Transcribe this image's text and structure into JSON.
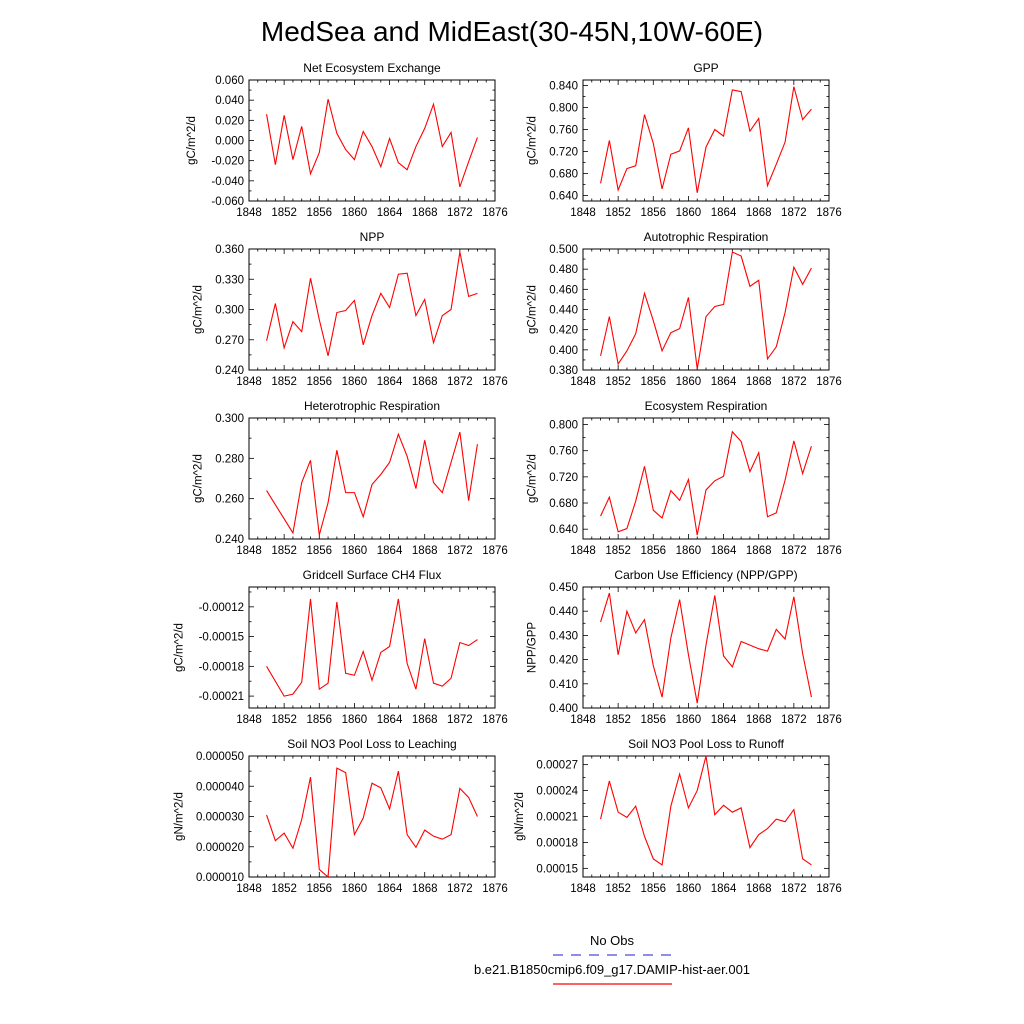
{
  "title": "MedSea and MidEast(30-45N,10W-60E)",
  "line_color": "#ff0000",
  "obs_color": "#4a4ad8",
  "legend": {
    "obs_label": "No Obs",
    "model_label": "b.e21.B1850cmip6.f09_g17.DAMIP-hist-aer.001"
  },
  "chart_data": [
    {
      "type": "line",
      "title": "Net Ecosystem Exchange",
      "ylabel": "gC/m^2/d",
      "xlim": [
        1848,
        1876
      ],
      "ylim": [
        -0.06,
        0.06
      ],
      "xticks": [
        "1848",
        "1852",
        "1856",
        "1860",
        "1864",
        "1868",
        "1872",
        "1876"
      ],
      "yticks": [
        {
          "v": -0.06,
          "l": "-0.060"
        },
        {
          "v": -0.04,
          "l": "-0.040"
        },
        {
          "v": -0.02,
          "l": "-0.020"
        },
        {
          "v": 0.0,
          "l": "0.000"
        },
        {
          "v": 0.02,
          "l": "0.020"
        },
        {
          "v": 0.04,
          "l": "0.040"
        },
        {
          "v": 0.06,
          "l": "0.060"
        }
      ],
      "x": [
        1850,
        1851,
        1852,
        1853,
        1854,
        1855,
        1856,
        1857,
        1858,
        1859,
        1860,
        1861,
        1862,
        1863,
        1864,
        1865,
        1866,
        1867,
        1868,
        1869,
        1870,
        1871,
        1872,
        1873,
        1874
      ],
      "y": [
        0.026,
        -0.024,
        0.025,
        -0.019,
        0.014,
        -0.033,
        -0.012,
        0.041,
        0.007,
        -0.009,
        -0.019,
        0.009,
        -0.006,
        -0.026,
        0.002,
        -0.022,
        -0.029,
        -0.006,
        0.012,
        0.036,
        -0.006,
        0.008,
        -0.046,
        -0.021,
        0.003
      ]
    },
    {
      "type": "line",
      "title": "GPP",
      "ylabel": "gC/m^2/d",
      "xlim": [
        1848,
        1876
      ],
      "ylim": [
        0.63,
        0.85
      ],
      "xticks": [
        "1848",
        "1852",
        "1856",
        "1860",
        "1864",
        "1868",
        "1872",
        "1876"
      ],
      "yticks": [
        {
          "v": 0.64,
          "l": "0.640"
        },
        {
          "v": 0.68,
          "l": "0.680"
        },
        {
          "v": 0.72,
          "l": "0.720"
        },
        {
          "v": 0.76,
          "l": "0.760"
        },
        {
          "v": 0.8,
          "l": "0.800"
        },
        {
          "v": 0.84,
          "l": "0.840"
        }
      ],
      "x": [
        1850,
        1851,
        1852,
        1853,
        1854,
        1855,
        1856,
        1857,
        1858,
        1859,
        1860,
        1861,
        1862,
        1863,
        1864,
        1865,
        1866,
        1867,
        1868,
        1869,
        1870,
        1871,
        1872,
        1873,
        1874
      ],
      "y": [
        0.662,
        0.74,
        0.65,
        0.689,
        0.694,
        0.787,
        0.735,
        0.652,
        0.715,
        0.721,
        0.763,
        0.645,
        0.728,
        0.76,
        0.748,
        0.832,
        0.829,
        0.757,
        0.78,
        0.658,
        0.697,
        0.737,
        0.838,
        0.778,
        0.797
      ]
    },
    {
      "type": "line",
      "title": "NPP",
      "ylabel": "gC/m^2/d",
      "xlim": [
        1848,
        1876
      ],
      "ylim": [
        0.24,
        0.36
      ],
      "xticks": [
        "1848",
        "1852",
        "1856",
        "1860",
        "1864",
        "1868",
        "1872",
        "1876"
      ],
      "yticks": [
        {
          "v": 0.24,
          "l": "0.240"
        },
        {
          "v": 0.27,
          "l": "0.270"
        },
        {
          "v": 0.3,
          "l": "0.300"
        },
        {
          "v": 0.33,
          "l": "0.330"
        },
        {
          "v": 0.36,
          "l": "0.360"
        }
      ],
      "x": [
        1850,
        1851,
        1852,
        1853,
        1854,
        1855,
        1856,
        1857,
        1858,
        1859,
        1860,
        1861,
        1862,
        1863,
        1864,
        1865,
        1866,
        1867,
        1868,
        1869,
        1870,
        1871,
        1872,
        1873,
        1874
      ],
      "y": [
        0.269,
        0.306,
        0.262,
        0.288,
        0.278,
        0.331,
        0.29,
        0.254,
        0.297,
        0.299,
        0.309,
        0.265,
        0.294,
        0.316,
        0.302,
        0.335,
        0.336,
        0.294,
        0.31,
        0.267,
        0.294,
        0.3,
        0.357,
        0.313,
        0.316
      ]
    },
    {
      "type": "line",
      "title": "Autotrophic Respiration",
      "ylabel": "gC/m^2/d",
      "xlim": [
        1848,
        1876
      ],
      "ylim": [
        0.38,
        0.5
      ],
      "xticks": [
        "1848",
        "1852",
        "1856",
        "1860",
        "1864",
        "1868",
        "1872",
        "1876"
      ],
      "yticks": [
        {
          "v": 0.38,
          "l": "0.380"
        },
        {
          "v": 0.4,
          "l": "0.400"
        },
        {
          "v": 0.42,
          "l": "0.420"
        },
        {
          "v": 0.44,
          "l": "0.440"
        },
        {
          "v": 0.46,
          "l": "0.460"
        },
        {
          "v": 0.48,
          "l": "0.480"
        },
        {
          "v": 0.5,
          "l": "0.500"
        }
      ],
      "x": [
        1850,
        1851,
        1852,
        1853,
        1854,
        1855,
        1856,
        1857,
        1858,
        1859,
        1860,
        1861,
        1862,
        1863,
        1864,
        1865,
        1866,
        1867,
        1868,
        1869,
        1870,
        1871,
        1872,
        1873,
        1874
      ],
      "y": [
        0.394,
        0.433,
        0.386,
        0.399,
        0.416,
        0.456,
        0.429,
        0.399,
        0.417,
        0.421,
        0.452,
        0.381,
        0.433,
        0.443,
        0.445,
        0.497,
        0.493,
        0.463,
        0.469,
        0.391,
        0.403,
        0.437,
        0.482,
        0.465,
        0.481
      ]
    },
    {
      "type": "line",
      "title": "Heterotrophic Respiration",
      "ylabel": "gC/m^2/d",
      "xlim": [
        1848,
        1876
      ],
      "ylim": [
        0.24,
        0.3
      ],
      "xticks": [
        "1848",
        "1852",
        "1856",
        "1860",
        "1864",
        "1868",
        "1872",
        "1876"
      ],
      "yticks": [
        {
          "v": 0.24,
          "l": "0.240"
        },
        {
          "v": 0.26,
          "l": "0.260"
        },
        {
          "v": 0.28,
          "l": "0.280"
        },
        {
          "v": 0.3,
          "l": "0.300"
        }
      ],
      "x": [
        1850,
        1851,
        1852,
        1853,
        1854,
        1855,
        1856,
        1857,
        1858,
        1859,
        1860,
        1861,
        1862,
        1863,
        1864,
        1865,
        1866,
        1867,
        1868,
        1869,
        1870,
        1871,
        1872,
        1873,
        1874
      ],
      "y": [
        0.264,
        0.257,
        0.25,
        0.243,
        0.268,
        0.279,
        0.242,
        0.258,
        0.284,
        0.263,
        0.263,
        0.251,
        0.267,
        0.272,
        0.278,
        0.292,
        0.281,
        0.265,
        0.289,
        0.268,
        0.263,
        0.278,
        0.293,
        0.259,
        0.287
      ]
    },
    {
      "type": "line",
      "title": "Ecosystem Respiration",
      "ylabel": "gC/m^2/d",
      "xlim": [
        1848,
        1876
      ],
      "ylim": [
        0.625,
        0.81
      ],
      "xticks": [
        "1848",
        "1852",
        "1856",
        "1860",
        "1864",
        "1868",
        "1872",
        "1876"
      ],
      "yticks": [
        {
          "v": 0.64,
          "l": "0.640"
        },
        {
          "v": 0.68,
          "l": "0.680"
        },
        {
          "v": 0.72,
          "l": "0.720"
        },
        {
          "v": 0.76,
          "l": "0.760"
        },
        {
          "v": 0.8,
          "l": "0.800"
        }
      ],
      "x": [
        1850,
        1851,
        1852,
        1853,
        1854,
        1855,
        1856,
        1857,
        1858,
        1859,
        1860,
        1861,
        1862,
        1863,
        1864,
        1865,
        1866,
        1867,
        1868,
        1869,
        1870,
        1871,
        1872,
        1873,
        1874
      ],
      "y": [
        0.66,
        0.689,
        0.636,
        0.641,
        0.683,
        0.736,
        0.669,
        0.657,
        0.699,
        0.684,
        0.716,
        0.631,
        0.7,
        0.714,
        0.721,
        0.789,
        0.774,
        0.728,
        0.757,
        0.659,
        0.665,
        0.715,
        0.775,
        0.725,
        0.767
      ]
    },
    {
      "type": "line",
      "title": "Gridcell Surface CH4 Flux",
      "ylabel": "gC/m^2/d",
      "xlim": [
        1848,
        1876
      ],
      "ylim": [
        -0.000222,
        -0.0001
      ],
      "xticks": [
        "1848",
        "1852",
        "1856",
        "1860",
        "1864",
        "1868",
        "1872",
        "1876"
      ],
      "yticks": [
        {
          "v": -0.00021,
          "l": "-0.00021"
        },
        {
          "v": -0.00018,
          "l": "-0.00018"
        },
        {
          "v": -0.00015,
          "l": "-0.00015"
        },
        {
          "v": -0.00012,
          "l": "-0.00012"
        }
      ],
      "x": [
        1850,
        1851,
        1852,
        1853,
        1854,
        1855,
        1856,
        1857,
        1858,
        1859,
        1860,
        1861,
        1862,
        1863,
        1864,
        1865,
        1866,
        1867,
        1868,
        1869,
        1870,
        1871,
        1872,
        1873,
        1874
      ],
      "y": [
        -0.00018,
        -0.000195,
        -0.00021,
        -0.000208,
        -0.000196,
        -0.000112,
        -0.000203,
        -0.000197,
        -0.000115,
        -0.000187,
        -0.000189,
        -0.000165,
        -0.000194,
        -0.000166,
        -0.00016,
        -0.000112,
        -0.000177,
        -0.000203,
        -0.000152,
        -0.000197,
        -0.0002,
        -0.000192,
        -0.000156,
        -0.000159,
        -0.000153
      ]
    },
    {
      "type": "line",
      "title": "Carbon Use Efficiency (NPP/GPP)",
      "ylabel": "NPP/GPP",
      "xlim": [
        1848,
        1876
      ],
      "ylim": [
        0.4,
        0.45
      ],
      "xticks": [
        "1848",
        "1852",
        "1856",
        "1860",
        "1864",
        "1868",
        "1872",
        "1876"
      ],
      "yticks": [
        {
          "v": 0.4,
          "l": "0.400"
        },
        {
          "v": 0.41,
          "l": "0.410"
        },
        {
          "v": 0.42,
          "l": "0.420"
        },
        {
          "v": 0.43,
          "l": "0.430"
        },
        {
          "v": 0.44,
          "l": "0.440"
        },
        {
          "v": 0.45,
          "l": "0.450"
        }
      ],
      "x": [
        1850,
        1851,
        1852,
        1853,
        1854,
        1855,
        1856,
        1857,
        1858,
        1859,
        1860,
        1861,
        1862,
        1863,
        1864,
        1865,
        1866,
        1867,
        1868,
        1869,
        1870,
        1871,
        1872,
        1873,
        1874
      ],
      "y": [
        0.4355,
        0.4475,
        0.422,
        0.44,
        0.431,
        0.4365,
        0.4175,
        0.4045,
        0.429,
        0.4448,
        0.422,
        0.402,
        0.426,
        0.4465,
        0.4215,
        0.417,
        0.4275,
        0.426,
        0.4245,
        0.4235,
        0.4325,
        0.4285,
        0.446,
        0.4225,
        0.4045
      ]
    },
    {
      "type": "line",
      "title": "Soil NO3 Pool Loss to Leaching",
      "ylabel": "gN/m^2/d",
      "xlim": [
        1848,
        1876
      ],
      "ylim": [
        1e-05,
        5e-05
      ],
      "xticks": [
        "1848",
        "1852",
        "1856",
        "1860",
        "1864",
        "1868",
        "1872",
        "1876"
      ],
      "yticks": [
        {
          "v": 1e-05,
          "l": "0.000010"
        },
        {
          "v": 2e-05,
          "l": "0.000020"
        },
        {
          "v": 3e-05,
          "l": "0.000030"
        },
        {
          "v": 4e-05,
          "l": "0.000040"
        },
        {
          "v": 5e-05,
          "l": "0.000050"
        }
      ],
      "x": [
        1850,
        1851,
        1852,
        1853,
        1854,
        1855,
        1856,
        1857,
        1858,
        1859,
        1860,
        1861,
        1862,
        1863,
        1864,
        1865,
        1866,
        1867,
        1868,
        1869,
        1870,
        1871,
        1872,
        1873,
        1874
      ],
      "y": [
        3.05e-05,
        2.2e-05,
        2.45e-05,
        1.95e-05,
        2.9e-05,
        4.3e-05,
        1.25e-05,
        1e-05,
        4.6e-05,
        4.45e-05,
        2.4e-05,
        2.95e-05,
        4.1e-05,
        3.95e-05,
        3.25e-05,
        4.5e-05,
        2.4e-05,
        1.98e-05,
        2.55e-05,
        2.35e-05,
        2.25e-05,
        2.4e-05,
        3.93e-05,
        3.63e-05,
        3e-05
      ]
    },
    {
      "type": "line",
      "title": "Soil NO3 Pool Loss to Runoff",
      "ylabel": "gN/m^2/d",
      "xlim": [
        1848,
        1876
      ],
      "ylim": [
        0.00014,
        0.00028
      ],
      "xticks": [
        "1848",
        "1852",
        "1856",
        "1860",
        "1864",
        "1868",
        "1872",
        "1876"
      ],
      "yticks": [
        {
          "v": 0.00015,
          "l": "0.00015"
        },
        {
          "v": 0.00018,
          "l": "0.00018"
        },
        {
          "v": 0.00021,
          "l": "0.00021"
        },
        {
          "v": 0.00024,
          "l": "0.00024"
        },
        {
          "v": 0.00027,
          "l": "0.00027"
        }
      ],
      "x": [
        1850,
        1851,
        1852,
        1853,
        1854,
        1855,
        1856,
        1857,
        1858,
        1859,
        1860,
        1861,
        1862,
        1863,
        1864,
        1865,
        1866,
        1867,
        1868,
        1869,
        1870,
        1871,
        1872,
        1873,
        1874
      ],
      "y": [
        0.000207,
        0.000251,
        0.000215,
        0.000209,
        0.000222,
        0.000187,
        0.000161,
        0.000154,
        0.000222,
        0.000259,
        0.00022,
        0.00024,
        0.00028,
        0.000212,
        0.000223,
        0.000215,
        0.00022,
        0.000174,
        0.000189,
        0.000196,
        0.000207,
        0.000204,
        0.000218,
        0.000161,
        0.000154
      ]
    }
  ]
}
